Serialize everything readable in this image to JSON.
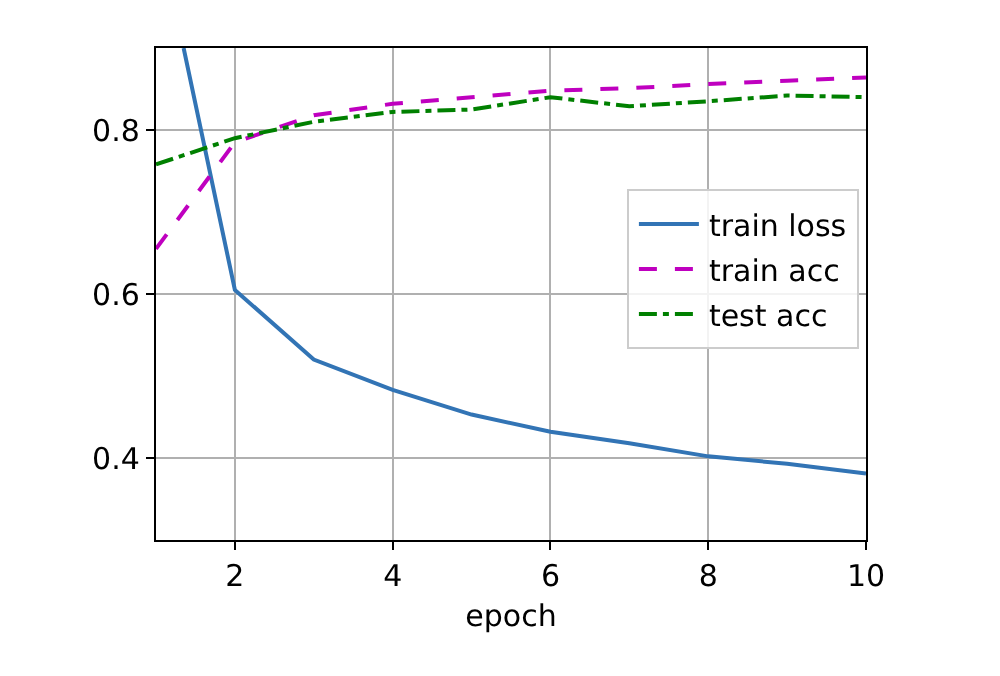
{
  "chart_data": {
    "type": "line",
    "xlabel": "epoch",
    "xlim": [
      1,
      10
    ],
    "xticks": [
      2,
      4,
      6,
      8,
      10
    ],
    "ylim": [
      0.3,
      0.9
    ],
    "yticks": [
      0.4,
      0.6,
      0.8
    ],
    "grid": true,
    "legend": "right",
    "marker": "none",
    "series": [
      {
        "name": "train loss",
        "color": "#3274b5",
        "line_style": "solid",
        "x": [
          1.35,
          2,
          3,
          4,
          5,
          6,
          7,
          8,
          9,
          10
        ],
        "values": [
          0.9,
          0.605,
          0.52,
          0.483,
          0.453,
          0.432,
          0.418,
          0.402,
          0.393,
          0.381
        ]
      },
      {
        "name": "train acc",
        "color": "#bf00bf",
        "line_style": "dashed",
        "x": [
          1,
          2,
          3,
          4,
          5,
          6,
          7,
          8,
          9,
          10
        ],
        "values": [
          0.655,
          0.785,
          0.818,
          0.832,
          0.84,
          0.848,
          0.851,
          0.856,
          0.86,
          0.864
        ]
      },
      {
        "name": "test acc",
        "color": "#008000",
        "line_style": "dashdot",
        "x": [
          1,
          2,
          3,
          4,
          5,
          6,
          7,
          8,
          9,
          10
        ],
        "values": [
          0.758,
          0.79,
          0.81,
          0.822,
          0.825,
          0.84,
          0.829,
          0.835,
          0.842,
          0.84
        ]
      }
    ]
  }
}
